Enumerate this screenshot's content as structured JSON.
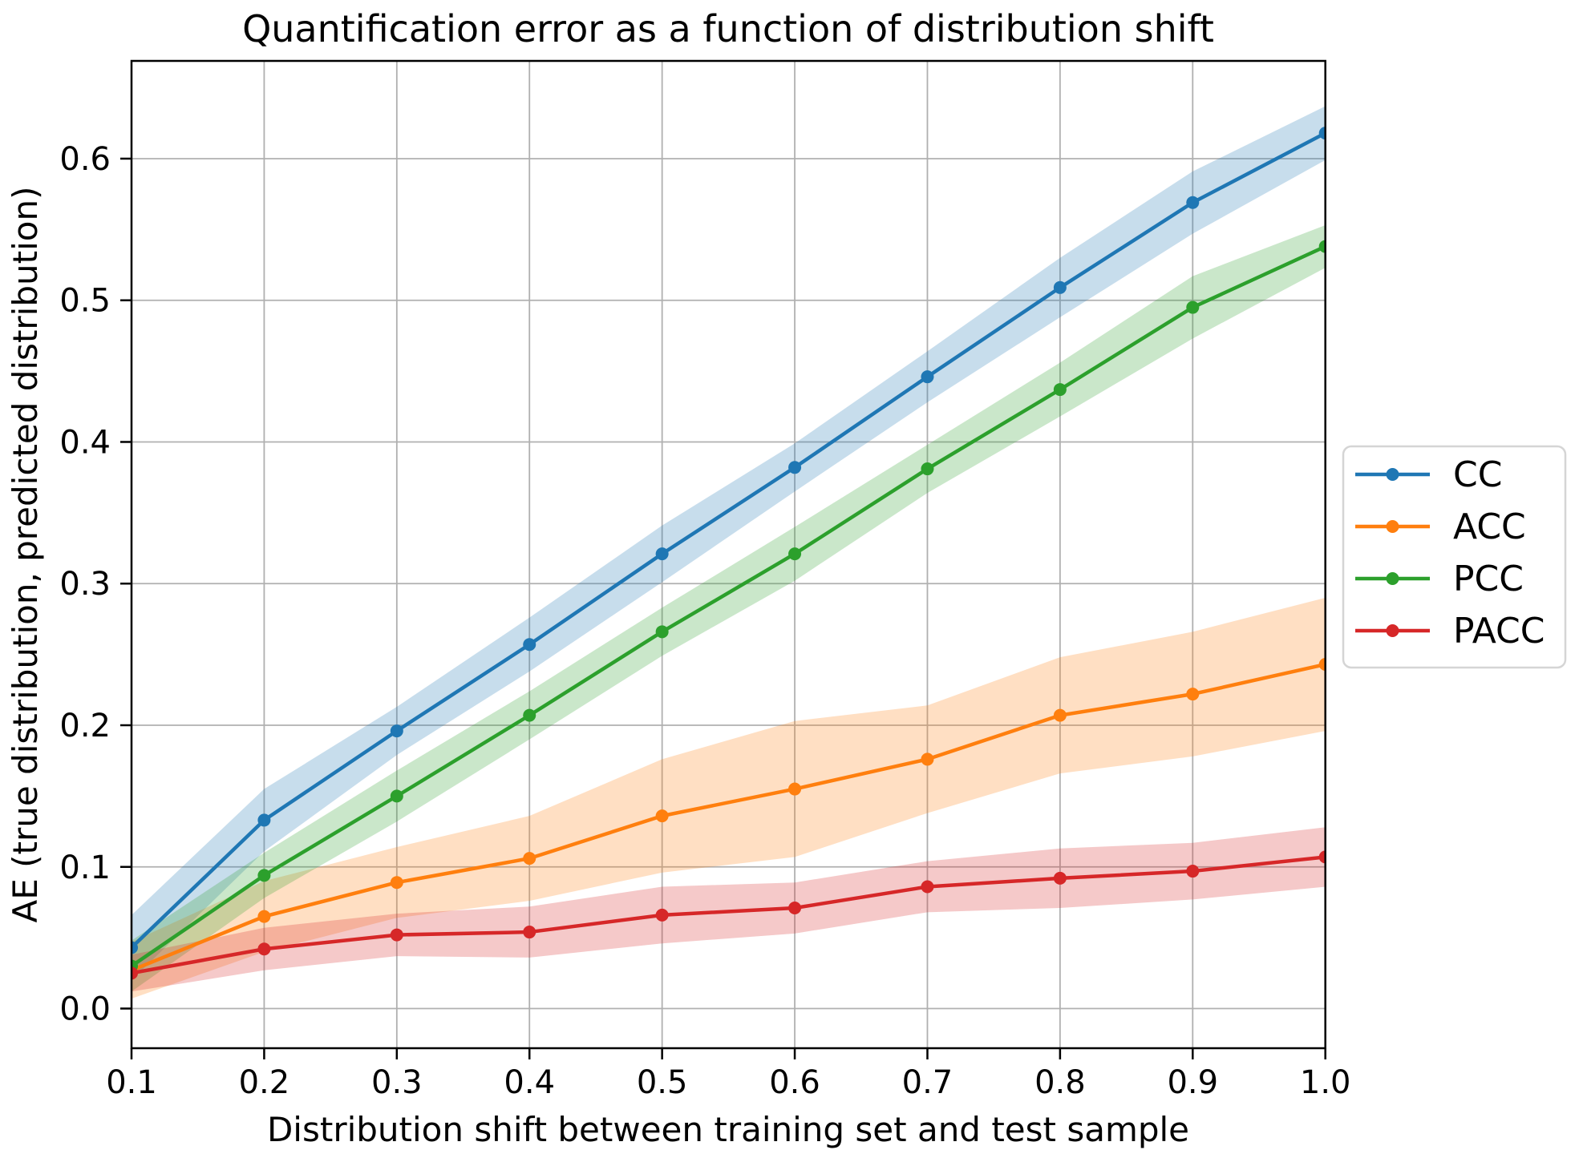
{
  "figure": {
    "background": "#ffffff",
    "spine_color": "#000000",
    "tick_color": "#000000"
  },
  "chart_data": {
    "type": "line",
    "title": "Quantification error as a function of distribution shift",
    "xlabel": "Distribution shift between training set and test sample",
    "ylabel": "AE (true distribution, predicted distribution)",
    "x": [
      0.1,
      0.2,
      0.3,
      0.4,
      0.5,
      0.6,
      0.7,
      0.8,
      0.9,
      1.0
    ],
    "xlim": [
      0.1,
      1.0
    ],
    "ylim": [
      -0.028,
      0.669
    ],
    "xtick_labels": [
      "0.1",
      "0.2",
      "0.3",
      "0.4",
      "0.5",
      "0.6",
      "0.7",
      "0.8",
      "0.9",
      "1.0"
    ],
    "ytick_values": [
      0.0,
      0.1,
      0.2,
      0.3,
      0.4,
      0.5,
      0.6
    ],
    "ytick_labels": [
      "0.0",
      "0.1",
      "0.2",
      "0.3",
      "0.4",
      "0.5",
      "0.6"
    ],
    "grid": true,
    "grid_color": "#b0b0b0",
    "band_opacity": 0.25,
    "legend": {
      "position": "right-outside",
      "entries": [
        "CC",
        "ACC",
        "PCC",
        "PACC"
      ]
    },
    "series": [
      {
        "name": "CC",
        "color": "#1f77b4",
        "values": [
          0.043,
          0.133,
          0.196,
          0.257,
          0.321,
          0.382,
          0.446,
          0.509,
          0.569,
          0.618
        ],
        "band_halfwidth": [
          0.023,
          0.022,
          0.017,
          0.019,
          0.02,
          0.017,
          0.018,
          0.021,
          0.022,
          0.019
        ]
      },
      {
        "name": "ACC",
        "color": "#ff7f0e",
        "values": [
          0.027,
          0.065,
          0.089,
          0.106,
          0.136,
          0.155,
          0.176,
          0.207,
          0.222,
          0.243
        ],
        "band_halfwidth": [
          0.02,
          0.025,
          0.025,
          0.03,
          0.04,
          0.048,
          0.038,
          0.041,
          0.044,
          0.047
        ]
      },
      {
        "name": "PCC",
        "color": "#2ca02c",
        "values": [
          0.03,
          0.094,
          0.15,
          0.207,
          0.266,
          0.321,
          0.381,
          0.437,
          0.495,
          0.538
        ],
        "band_halfwidth": [
          0.018,
          0.016,
          0.018,
          0.017,
          0.017,
          0.019,
          0.017,
          0.019,
          0.022,
          0.015
        ]
      },
      {
        "name": "PACC",
        "color": "#d62728",
        "values": [
          0.025,
          0.042,
          0.052,
          0.054,
          0.066,
          0.071,
          0.086,
          0.092,
          0.097,
          0.107
        ],
        "band_halfwidth": [
          0.013,
          0.015,
          0.015,
          0.018,
          0.02,
          0.018,
          0.018,
          0.021,
          0.02,
          0.021
        ]
      }
    ]
  }
}
